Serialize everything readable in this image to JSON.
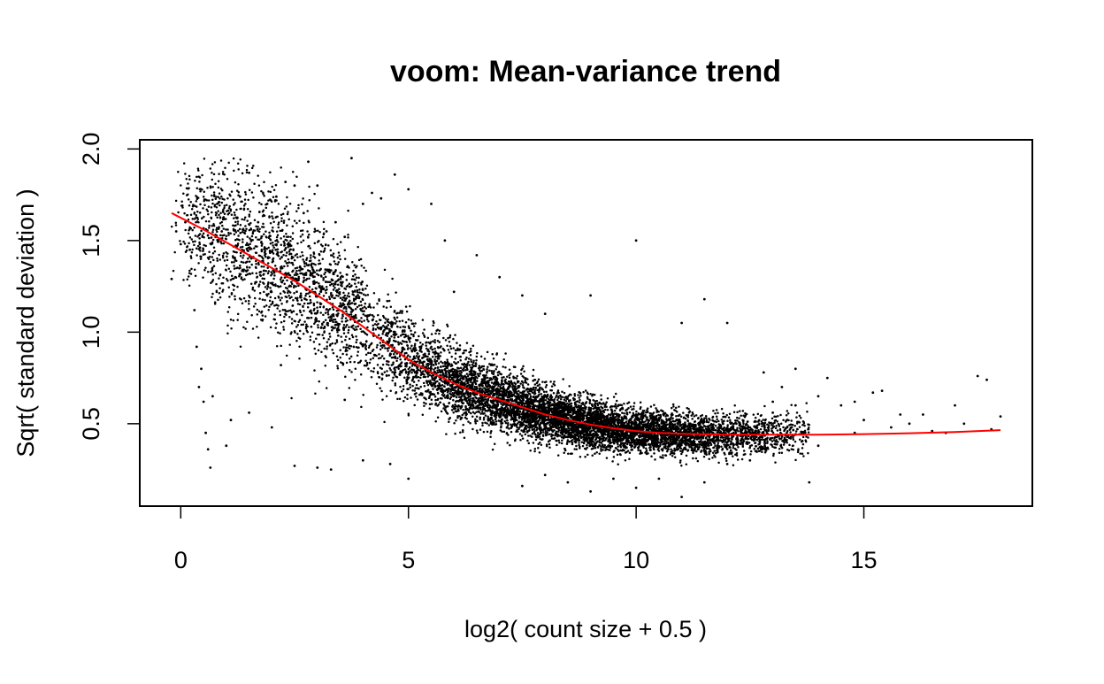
{
  "chart_data": {
    "type": "scatter",
    "title": "voom: Mean-variance trend",
    "xlabel": "log2( count size + 0.5 )",
    "ylabel": "Sqrt( standard deviation )",
    "xlim": [
      -0.9,
      18.7
    ],
    "ylim": [
      0.05,
      2.05
    ],
    "x_ticks": [
      0,
      5,
      10,
      15
    ],
    "x_tick_labels": [
      "0",
      "5",
      "10",
      "15"
    ],
    "y_ticks": [
      0.5,
      1.0,
      1.5,
      2.0
    ],
    "y_tick_labels": [
      "0.5",
      "1.0",
      "1.5",
      "2.0"
    ],
    "grid": false,
    "point_color": "#000000",
    "trend_color": "#ff0000",
    "series": [
      {
        "kind": "points",
        "points": [
          [
            -0.2,
            1.29
          ],
          [
            -0.1,
            1.55
          ],
          [
            0.0,
            1.48
          ],
          [
            0.1,
            1.6
          ],
          [
            0.2,
            1.45
          ],
          [
            0.3,
            1.12
          ],
          [
            0.35,
            0.92
          ],
          [
            0.4,
            0.7
          ],
          [
            0.45,
            0.8
          ],
          [
            0.5,
            0.62
          ],
          [
            0.55,
            0.45
          ],
          [
            0.6,
            0.36
          ],
          [
            0.65,
            0.26
          ],
          [
            0.7,
            0.65
          ],
          [
            0.8,
            1.7
          ],
          [
            0.9,
            1.55
          ],
          [
            1.0,
            0.38
          ],
          [
            1.1,
            0.52
          ],
          [
            1.2,
            1.3
          ],
          [
            1.3,
            1.74
          ],
          [
            1.5,
            1.87
          ],
          [
            1.7,
            1.6
          ],
          [
            1.9,
            1.7
          ],
          [
            2.1,
            1.74
          ],
          [
            2.3,
            1.82
          ],
          [
            2.5,
            1.8
          ],
          [
            2.7,
            1.65
          ],
          [
            2.8,
            1.93
          ],
          [
            3.0,
            1.8
          ],
          [
            3.2,
            1.55
          ],
          [
            3.4,
            1.6
          ],
          [
            3.6,
            1.52
          ],
          [
            3.75,
            1.95
          ],
          [
            4.0,
            1.7
          ],
          [
            4.2,
            1.76
          ],
          [
            4.4,
            1.73
          ],
          [
            4.7,
            1.86
          ],
          [
            5.0,
            1.78
          ],
          [
            5.5,
            1.7
          ],
          [
            5.8,
            1.5
          ],
          [
            6.0,
            1.22
          ],
          [
            6.5,
            1.42
          ],
          [
            7.0,
            1.3
          ],
          [
            7.5,
            1.2
          ],
          [
            8.0,
            1.1
          ],
          [
            9.0,
            1.2
          ],
          [
            10.0,
            1.5
          ],
          [
            11.0,
            1.05
          ],
          [
            11.5,
            1.18
          ],
          [
            12.0,
            1.05
          ],
          [
            2.5,
            0.27
          ],
          [
            3.0,
            0.26
          ],
          [
            3.3,
            0.25
          ],
          [
            4.0,
            0.3
          ],
          [
            4.6,
            0.28
          ],
          [
            5.0,
            0.2
          ],
          [
            2.0,
            0.48
          ],
          [
            1.5,
            0.56
          ],
          [
            2.2,
            0.82
          ],
          [
            3.6,
            0.63
          ],
          [
            7.5,
            0.16
          ],
          [
            8.0,
            0.22
          ],
          [
            8.5,
            0.18
          ],
          [
            9.0,
            0.13
          ],
          [
            9.5,
            0.2
          ],
          [
            10.0,
            0.15
          ],
          [
            10.5,
            0.2
          ],
          [
            11.0,
            0.1
          ],
          [
            11.5,
            0.18
          ],
          [
            12.0,
            0.28
          ],
          [
            13.0,
            0.62
          ],
          [
            13.2,
            0.7
          ],
          [
            13.5,
            0.6
          ],
          [
            13.5,
            0.8
          ],
          [
            14.0,
            0.65
          ],
          [
            14.2,
            0.75
          ],
          [
            14.5,
            0.6
          ],
          [
            14.8,
            0.62
          ],
          [
            15.0,
            0.52
          ],
          [
            15.2,
            0.67
          ],
          [
            15.4,
            0.68
          ],
          [
            15.6,
            0.48
          ],
          [
            15.8,
            0.55
          ],
          [
            16.0,
            0.5
          ],
          [
            16.3,
            0.55
          ],
          [
            16.8,
            0.45
          ],
          [
            17.0,
            0.6
          ],
          [
            17.2,
            0.5
          ],
          [
            17.5,
            0.76
          ],
          [
            17.7,
            0.74
          ],
          [
            18.0,
            0.54
          ],
          [
            13.8,
            0.18
          ],
          [
            12.5,
            0.3
          ],
          [
            14.0,
            0.38
          ],
          [
            12.8,
            0.78
          ],
          [
            13.0,
            0.56
          ],
          [
            12.2,
            0.5
          ],
          [
            14.8,
            0.45
          ],
          [
            16.5,
            0.46
          ],
          [
            17.8,
            0.47
          ]
        ]
      },
      {
        "kind": "trend",
        "points": [
          [
            -0.2,
            1.65
          ],
          [
            0.5,
            1.56
          ],
          [
            1,
            1.49
          ],
          [
            1.5,
            1.42
          ],
          [
            2,
            1.35
          ],
          [
            2.5,
            1.28
          ],
          [
            3,
            1.2
          ],
          [
            3.5,
            1.12
          ],
          [
            4,
            1.03
          ],
          [
            4.5,
            0.94
          ],
          [
            5,
            0.85
          ],
          [
            5.5,
            0.78
          ],
          [
            6,
            0.72
          ],
          [
            6.5,
            0.67
          ],
          [
            7,
            0.63
          ],
          [
            7.5,
            0.59
          ],
          [
            8,
            0.55
          ],
          [
            8.5,
            0.52
          ],
          [
            9,
            0.495
          ],
          [
            9.5,
            0.475
          ],
          [
            10,
            0.46
          ],
          [
            10.5,
            0.45
          ],
          [
            11,
            0.445
          ],
          [
            11.5,
            0.442
          ],
          [
            12,
            0.44
          ],
          [
            13,
            0.44
          ],
          [
            14,
            0.44
          ],
          [
            15,
            0.443
          ],
          [
            16,
            0.448
          ],
          [
            17,
            0.455
          ],
          [
            18,
            0.465
          ]
        ]
      }
    ]
  }
}
